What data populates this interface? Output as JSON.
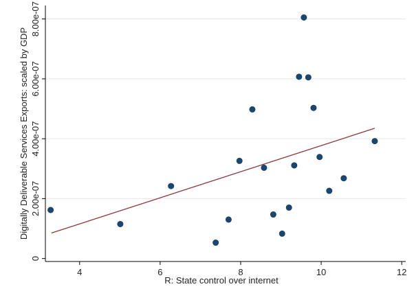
{
  "chart_data": {
    "type": "scatter",
    "xlabel": "R: State control over internet",
    "ylabel": "Digitally Deliverable Services Exports: scaled by GDP",
    "xlim": [
      3.15,
      12.1
    ],
    "ylim": [
      -1e-08,
      8.45e-07
    ],
    "x_ticks": [
      {
        "value": 4,
        "label": "4"
      },
      {
        "value": 6,
        "label": "6"
      },
      {
        "value": 8,
        "label": "8"
      },
      {
        "value": 10,
        "label": "10"
      },
      {
        "value": 12,
        "label": "12"
      }
    ],
    "y_ticks": [
      {
        "value": 0,
        "label": "0"
      },
      {
        "value": 2e-07,
        "label": "2.00e-07"
      },
      {
        "value": 4e-07,
        "label": "4.00e-07"
      },
      {
        "value": 6e-07,
        "label": "6.00e-07"
      },
      {
        "value": 8e-07,
        "label": "8.00e-07"
      }
    ],
    "grid": "horizontal",
    "marker_color": "#1a476f",
    "fit_line_color": "#90353b",
    "fit_line": {
      "x": [
        3.3,
        11.33
      ],
      "y": [
        8.5e-08,
        4.35e-07
      ]
    },
    "points": [
      {
        "x": 3.28,
        "y": 1.62e-07
      },
      {
        "x": 5.01,
        "y": 1.15e-07
      },
      {
        "x": 6.27,
        "y": 2.42e-07
      },
      {
        "x": 7.38,
        "y": 5.3e-08
      },
      {
        "x": 7.7,
        "y": 1.3e-07
      },
      {
        "x": 7.97,
        "y": 3.26e-07
      },
      {
        "x": 8.29,
        "y": 4.98e-07
      },
      {
        "x": 8.58,
        "y": 3.03e-07
      },
      {
        "x": 8.81,
        "y": 1.47e-07
      },
      {
        "x": 9.03,
        "y": 8.3e-08
      },
      {
        "x": 9.2,
        "y": 1.7e-07
      },
      {
        "x": 9.33,
        "y": 3.11e-07
      },
      {
        "x": 9.45,
        "y": 6.07e-07
      },
      {
        "x": 9.57,
        "y": 8.05e-07
      },
      {
        "x": 9.68,
        "y": 6.05e-07
      },
      {
        "x": 9.81,
        "y": 5.03e-07
      },
      {
        "x": 9.96,
        "y": 3.39e-07
      },
      {
        "x": 10.2,
        "y": 2.26e-07
      },
      {
        "x": 10.56,
        "y": 2.68e-07
      },
      {
        "x": 11.33,
        "y": 3.92e-07
      }
    ]
  }
}
